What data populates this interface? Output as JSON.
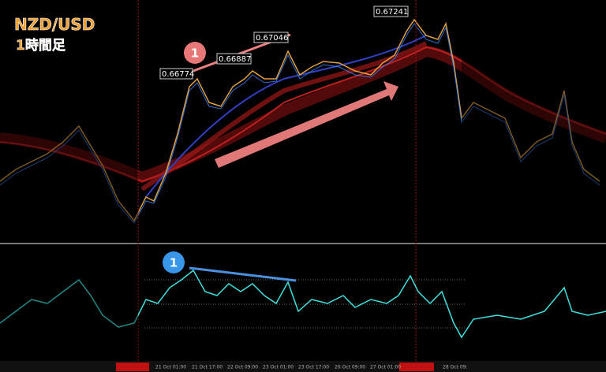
{
  "header": {
    "title": "NZD/USD",
    "subtitle": "1時間足"
  },
  "price_labels": [
    "0.66774",
    "0.66887",
    "0.67046",
    "0.67241"
  ],
  "badges": [
    "1",
    "1"
  ],
  "dates": [
    "21 Oct 01:00",
    "21 Oct 17:00",
    "22 Oct 09:00",
    "23 Oct 01:00",
    "23 Oct 17:00",
    "26 Oct 09:00",
    "27 Oct 01:00",
    "28 Oct 09:"
  ]
}
